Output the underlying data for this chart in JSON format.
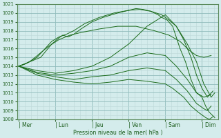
{
  "xlabel": "Pression niveau de la mer( hPa )",
  "ylim": [
    1008,
    1021
  ],
  "yticks": [
    1008,
    1009,
    1010,
    1011,
    1012,
    1013,
    1014,
    1015,
    1016,
    1017,
    1018,
    1019,
    1020,
    1021
  ],
  "x_day_labels": [
    "| Mer",
    "| Lun",
    "| Jeu",
    "| Ven",
    "| Sam",
    "| Dim"
  ],
  "x_day_positions": [
    0,
    1,
    2,
    3,
    4,
    5
  ],
  "background_color": "#d4ecec",
  "grid_minor_color": "#bcd8d8",
  "grid_major_color": "#90bcbc",
  "line_color": "#1a6b1a",
  "spine_color": "#5a8a5a",
  "tick_color": "#336633",
  "label_color": "#1a5c1a",
  "lines": [
    {
      "x": [
        0,
        0.15,
        0.3,
        0.6,
        0.9,
        1.1,
        1.2,
        1.35,
        1.5,
        1.7,
        2.0,
        2.3,
        2.7,
        3.0,
        3.2,
        3.4,
        3.6,
        3.8,
        3.9,
        4.05,
        4.2,
        4.4,
        4.55,
        4.7,
        4.85,
        5.0,
        5.1,
        5.2,
        5.35
      ],
      "y": [
        1014,
        1014.2,
        1014.5,
        1015,
        1016.5,
        1017.2,
        1017.5,
        1017.3,
        1017.6,
        1018.2,
        1019.0,
        1019.5,
        1020.0,
        1020.3,
        1020.5,
        1020.4,
        1020.2,
        1019.8,
        1019.5,
        1019.2,
        1018.5,
        1016.0,
        1014.5,
        1012.5,
        1011.0,
        1010.5,
        1009.5,
        1008.8,
        1008.2
      ]
    },
    {
      "x": [
        0,
        0.2,
        0.5,
        0.9,
        1.1,
        1.3,
        1.5,
        1.8,
        2.2,
        2.6,
        3.0,
        3.3,
        3.6,
        3.9,
        4.1,
        4.3,
        4.5,
        4.7,
        4.85,
        5.0,
        5.15,
        5.3
      ],
      "y": [
        1014,
        1014.3,
        1015.0,
        1016.8,
        1017.3,
        1017.6,
        1018.0,
        1018.8,
        1019.5,
        1020.0,
        1020.3,
        1020.4,
        1020.2,
        1019.8,
        1019.2,
        1018.5,
        1017.0,
        1015.0,
        1013.0,
        1011.5,
        1010.5,
        1011.2
      ]
    },
    {
      "x": [
        0,
        0.3,
        0.8,
        1.1,
        1.4,
        1.7,
        2.2,
        2.7,
        3.2,
        3.7,
        4.1,
        4.4,
        4.65,
        4.85,
        5.05,
        5.25
      ],
      "y": [
        1014,
        1014.5,
        1016.2,
        1017.0,
        1017.5,
        1017.8,
        1018.2,
        1018.5,
        1018.5,
        1018.0,
        1017.5,
        1016.8,
        1015.8,
        1015.2,
        1015.0,
        1015.2
      ]
    },
    {
      "x": [
        0,
        0.5,
        1.0,
        1.5,
        2.0,
        2.5,
        3.0,
        3.5,
        4.0,
        4.3,
        4.6,
        4.85,
        5.05,
        5.25,
        5.35
      ],
      "y": [
        1014,
        1013.5,
        1013.2,
        1013.5,
        1014.0,
        1015.0,
        1016.5,
        1018.5,
        1019.8,
        1018.5,
        1016.5,
        1014.5,
        1012.0,
        1010.5,
        1011.0
      ]
    },
    {
      "x": [
        0,
        0.5,
        1.0,
        1.5,
        2.0,
        2.5,
        3.0,
        3.5,
        4.0,
        4.3,
        4.6,
        4.85,
        5.05,
        5.25
      ],
      "y": [
        1014,
        1013.3,
        1013.0,
        1013.2,
        1013.5,
        1014.0,
        1015.0,
        1015.5,
        1015.2,
        1014.0,
        1012.5,
        1011.0,
        1010.5,
        1010.8
      ]
    },
    {
      "x": [
        0,
        0.5,
        1.0,
        1.5,
        2.0,
        2.5,
        3.0,
        3.5,
        4.0,
        4.3,
        4.6,
        4.85,
        5.05,
        5.15,
        5.25
      ],
      "y": [
        1014,
        1013.2,
        1012.8,
        1012.5,
        1012.8,
        1013.0,
        1013.5,
        1013.8,
        1013.5,
        1012.5,
        1011.2,
        1009.8,
        1009.2,
        1009.0,
        1009.5
      ]
    },
    {
      "x": [
        0,
        0.5,
        1.0,
        1.5,
        2.0,
        2.5,
        3.0,
        3.5,
        4.0,
        4.2,
        4.5,
        4.7,
        4.9,
        5.0,
        5.1,
        5.2,
        5.3
      ],
      "y": [
        1014,
        1013.0,
        1012.5,
        1012.2,
        1012.0,
        1012.2,
        1012.5,
        1012.3,
        1012.0,
        1011.5,
        1010.5,
        1009.5,
        1008.8,
        1008.5,
        1008.2,
        1008.0,
        1008.3
      ]
    }
  ]
}
